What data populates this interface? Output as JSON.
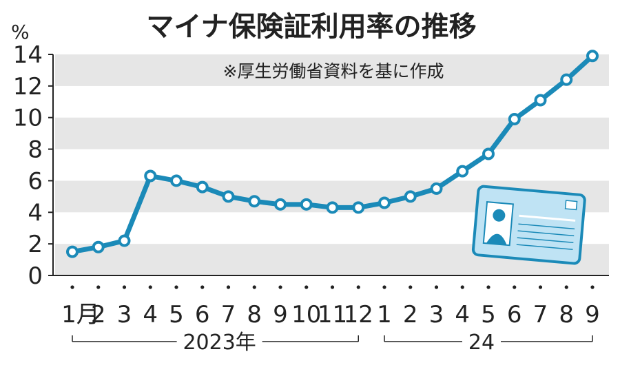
{
  "chart_data": {
    "type": "line",
    "title": "マイナ保険証利用率の推移",
    "note": "※厚生労働省資料を基に作成",
    "ylabel": "%",
    "ylim": [
      0,
      14
    ],
    "yticks": [
      "0",
      "2",
      "4",
      "6",
      "8",
      "10",
      "12",
      "14"
    ],
    "grid": "alternating horizontal bands",
    "x_labels": [
      "1月",
      "2",
      "3",
      "4",
      "5",
      "6",
      "7",
      "8",
      "9",
      "10",
      "11",
      "12",
      "1",
      "2",
      "3",
      "4",
      "5",
      "6",
      "7",
      "8",
      "9"
    ],
    "year_groups": [
      {
        "label": "2023年",
        "from": 0,
        "to": 11
      },
      {
        "label": "24",
        "from": 12,
        "to": 20
      }
    ],
    "series": [
      {
        "values": [
          1.5,
          1.8,
          2.2,
          6.3,
          6.0,
          5.6,
          5.0,
          4.7,
          4.5,
          4.5,
          4.3,
          4.3,
          4.6,
          5.0,
          5.5,
          6.6,
          7.7,
          9.9,
          11.1,
          12.4,
          13.9
        ]
      }
    ],
    "colors": {
      "line": "#1b8ab8",
      "band": "#e6e6e6",
      "axis": "#222222"
    }
  },
  "illustration": {
    "name": "my-number-card",
    "icon": "id-card-icon"
  }
}
